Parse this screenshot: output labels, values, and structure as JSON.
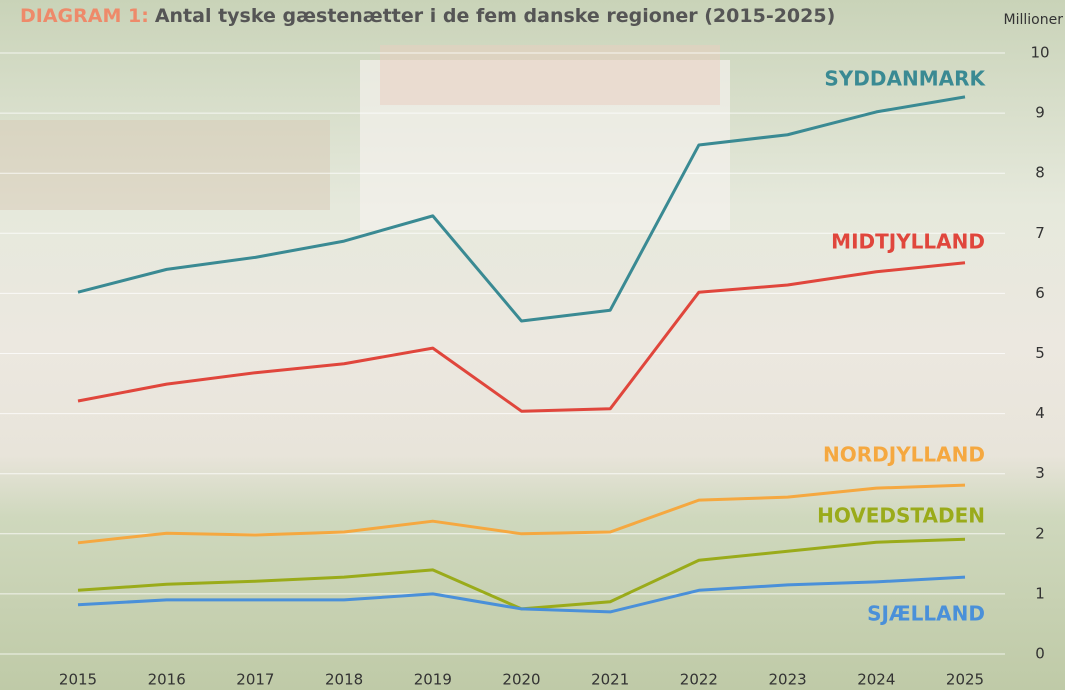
{
  "chart_data": {
    "type": "line",
    "title_prefix": "DIAGRAM 1:",
    "title": "Antal tyske gæstenætter i de fem danske regioner (2015-2025)",
    "y_label": "Millioner",
    "categories": [
      "2015",
      "2016",
      "2017",
      "2018",
      "2019",
      "2020",
      "2021",
      "2022",
      "2023",
      "2024",
      "2025"
    ],
    "ylim": [
      0,
      10
    ],
    "yticks": [
      0,
      1,
      2,
      3,
      4,
      5,
      6,
      7,
      8,
      9,
      10
    ],
    "grid": true,
    "series": [
      {
        "name": "SYDDANMARK",
        "color": "#3a8a93",
        "values": [
          6.02,
          6.4,
          6.6,
          6.87,
          7.29,
          5.54,
          5.72,
          8.47,
          8.64,
          9.02,
          9.27
        ]
      },
      {
        "name": "MIDTJYLLAND",
        "color": "#e0463c",
        "values": [
          4.21,
          4.49,
          4.68,
          4.83,
          5.09,
          4.04,
          4.08,
          6.02,
          6.14,
          6.36,
          6.51
        ]
      },
      {
        "name": "NORDJYLLAND",
        "color": "#f5a840",
        "values": [
          1.85,
          2.01,
          1.98,
          2.03,
          2.21,
          2.0,
          2.03,
          2.56,
          2.61,
          2.76,
          2.81
        ]
      },
      {
        "name": "HOVEDSTADEN",
        "color": "#9aab1a",
        "values": [
          1.06,
          1.16,
          1.21,
          1.28,
          1.4,
          0.75,
          0.87,
          1.56,
          1.71,
          1.86,
          1.91
        ]
      },
      {
        "name": "SJÆLLAND",
        "color": "#4a90d9",
        "values": [
          0.82,
          0.9,
          0.9,
          0.9,
          1.0,
          0.75,
          0.7,
          1.06,
          1.15,
          1.2,
          1.28
        ]
      }
    ]
  }
}
